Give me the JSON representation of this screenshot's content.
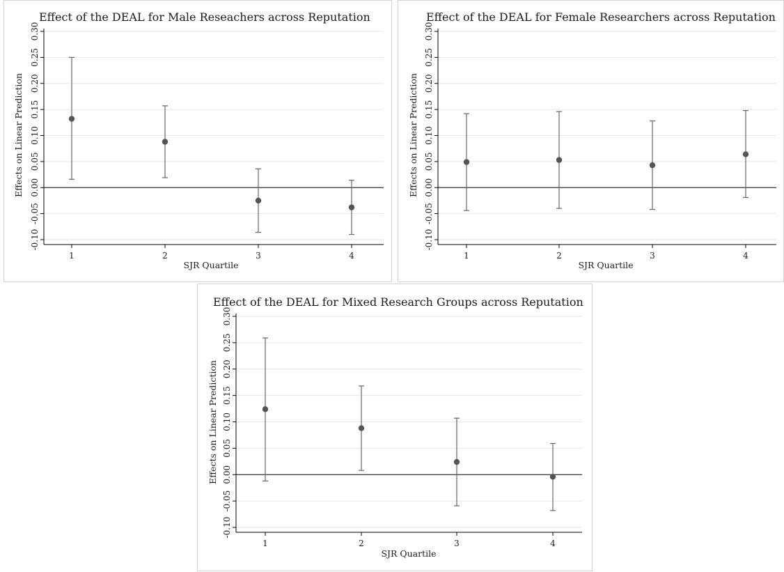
{
  "style": {
    "marker_color": "#555555",
    "ci_color": "#666666",
    "grid_color": "#e6e6e6",
    "axis_color": "#000000",
    "zero_line_color": "#333333"
  },
  "chart_data": [
    {
      "type": "scatter",
      "title": "Effect of the DEAL for Male Reseachers across Reputation",
      "xlabel": "SJR Quartile",
      "ylabel": "Effects on Linear Prediction",
      "categories": [
        "1",
        "2",
        "3",
        "4"
      ],
      "y_ticks": [
        "-0.10",
        "-0.05",
        "0.00",
        "0.05",
        "0.10",
        "0.15",
        "0.20",
        "0.25",
        "0.30"
      ],
      "ylim": [
        -0.1,
        0.3
      ],
      "grid": true,
      "reference_line": 0,
      "points": [
        {
          "x": 1,
          "y": 0.132,
          "ci_low": 0.016,
          "ci_high": 0.25
        },
        {
          "x": 2,
          "y": 0.088,
          "ci_low": 0.019,
          "ci_high": 0.157
        },
        {
          "x": 3,
          "y": -0.025,
          "ci_low": -0.086,
          "ci_high": 0.036
        },
        {
          "x": 4,
          "y": -0.038,
          "ci_low": -0.09,
          "ci_high": 0.014
        }
      ]
    },
    {
      "type": "scatter",
      "title": "Effect of the DEAL for Female Researchers across Reputation",
      "xlabel": "SJR Quartile",
      "ylabel": "Effects on Linear Prediction",
      "categories": [
        "1",
        "2",
        "3",
        "4"
      ],
      "y_ticks": [
        "-0.10",
        "-0.05",
        "0.00",
        "0.05",
        "0.10",
        "0.15",
        "0.20",
        "0.25",
        "0.30"
      ],
      "ylim": [
        -0.1,
        0.3
      ],
      "grid": true,
      "reference_line": 0,
      "points": [
        {
          "x": 1,
          "y": 0.049,
          "ci_low": -0.044,
          "ci_high": 0.142
        },
        {
          "x": 2,
          "y": 0.053,
          "ci_low": -0.04,
          "ci_high": 0.146
        },
        {
          "x": 3,
          "y": 0.043,
          "ci_low": -0.042,
          "ci_high": 0.128
        },
        {
          "x": 4,
          "y": 0.064,
          "ci_low": -0.019,
          "ci_high": 0.148
        }
      ]
    },
    {
      "type": "scatter",
      "title": "Effect of the DEAL for Mixed Research Groups across Reputation",
      "xlabel": "SJR Quartile",
      "ylabel": "Effects on Linear Prediction",
      "categories": [
        "1",
        "2",
        "3",
        "4"
      ],
      "y_ticks": [
        "-0.10",
        "-0.05",
        "0.00",
        "0.05",
        "0.10",
        "0.15",
        "0.20",
        "0.25",
        "0.30"
      ],
      "ylim": [
        -0.1,
        0.3
      ],
      "grid": true,
      "reference_line": 0,
      "points": [
        {
          "x": 1,
          "y": 0.124,
          "ci_low": -0.012,
          "ci_high": 0.259
        },
        {
          "x": 2,
          "y": 0.088,
          "ci_low": 0.008,
          "ci_high": 0.168
        },
        {
          "x": 3,
          "y": 0.024,
          "ci_low": -0.059,
          "ci_high": 0.107
        },
        {
          "x": 4,
          "y": -0.004,
          "ci_low": -0.068,
          "ci_high": 0.059
        }
      ]
    }
  ]
}
